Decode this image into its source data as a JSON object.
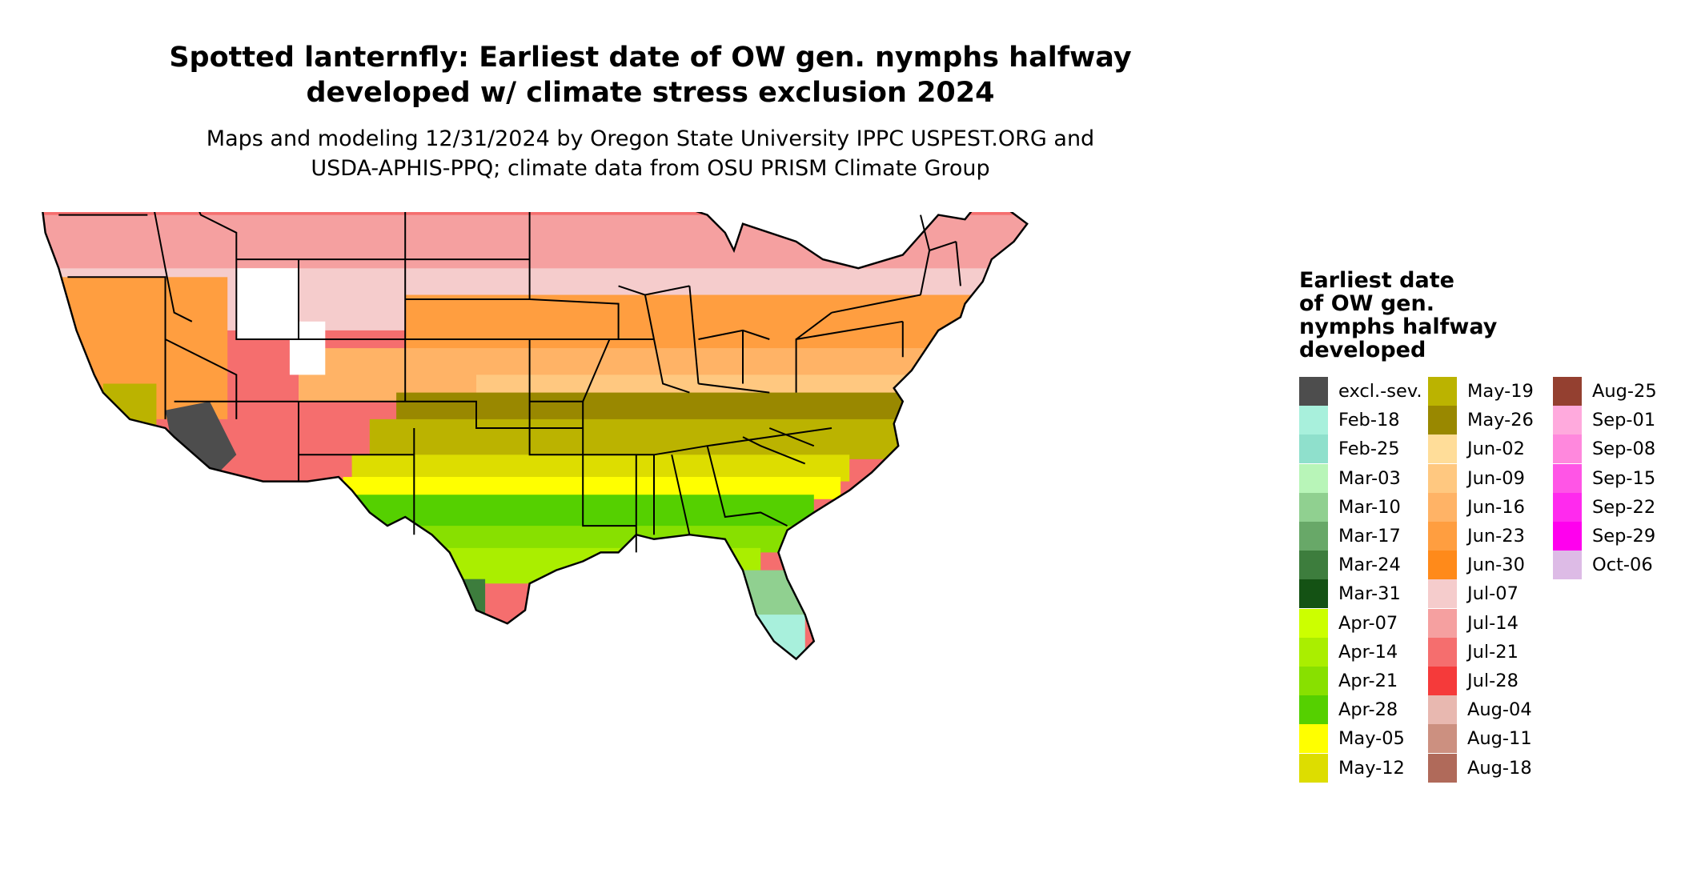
{
  "title_line1": "Spotted lanternfly: Earliest date of OW gen. nymphs halfway",
  "title_line2": "developed w/ climate stress exclusion 2024",
  "subtitle_line1": "Maps and modeling 12/31/2024 by Oregon State University IPPC USPEST.ORG and",
  "subtitle_line2": "USDA-APHIS-PPQ; climate data from OSU PRISM Climate Group",
  "legend": {
    "title_lines": [
      "Earliest date",
      "of OW gen.",
      "nymphs halfway",
      "developed"
    ],
    "items": [
      {
        "label": "excl.-sev.",
        "color": "#4d4d4d"
      },
      {
        "label": "Feb-18",
        "color": "#a8f0dc"
      },
      {
        "label": "Feb-25",
        "color": "#8fe0cc"
      },
      {
        "label": "Mar-03",
        "color": "#b8f5b8"
      },
      {
        "label": "Mar-10",
        "color": "#90d090"
      },
      {
        "label": "Mar-17",
        "color": "#68a868"
      },
      {
        "label": "Mar-24",
        "color": "#3d7d3d"
      },
      {
        "label": "Mar-31",
        "color": "#145214"
      },
      {
        "label": "Apr-07",
        "color": "#ccff00"
      },
      {
        "label": "Apr-14",
        "color": "#aaee00"
      },
      {
        "label": "Apr-21",
        "color": "#88e000"
      },
      {
        "label": "Apr-28",
        "color": "#55d000"
      },
      {
        "label": "May-05",
        "color": "#ffff00"
      },
      {
        "label": "May-12",
        "color": "#dddd00"
      },
      {
        "label": "May-19",
        "color": "#bbb300"
      },
      {
        "label": "May-26",
        "color": "#998800"
      },
      {
        "label": "Jun-02",
        "color": "#ffdd99"
      },
      {
        "label": "Jun-09",
        "color": "#ffc880"
      },
      {
        "label": "Jun-16",
        "color": "#ffb366"
      },
      {
        "label": "Jun-23",
        "color": "#ff9e40"
      },
      {
        "label": "Jun-30",
        "color": "#ff8a1a"
      },
      {
        "label": "Jul-07",
        "color": "#f5cccc"
      },
      {
        "label": "Jul-14",
        "color": "#f5a0a0"
      },
      {
        "label": "Jul-21",
        "color": "#f56e6e"
      },
      {
        "label": "Jul-28",
        "color": "#f53a3a"
      },
      {
        "label": "Aug-04",
        "color": "#e8b8b0"
      },
      {
        "label": "Aug-11",
        "color": "#cc9080"
      },
      {
        "label": "Aug-18",
        "color": "#b06a5a"
      },
      {
        "label": "Aug-25",
        "color": "#944030"
      },
      {
        "label": "Sep-01",
        "color": "#ffaadd"
      },
      {
        "label": "Sep-08",
        "color": "#ff88dd"
      },
      {
        "label": "Sep-15",
        "color": "#ff55e6"
      },
      {
        "label": "Sep-22",
        "color": "#ff2aee"
      },
      {
        "label": "Sep-29",
        "color": "#ff00ee"
      },
      {
        "label": "Oct-06",
        "color": "#ddbbe6"
      }
    ]
  }
}
